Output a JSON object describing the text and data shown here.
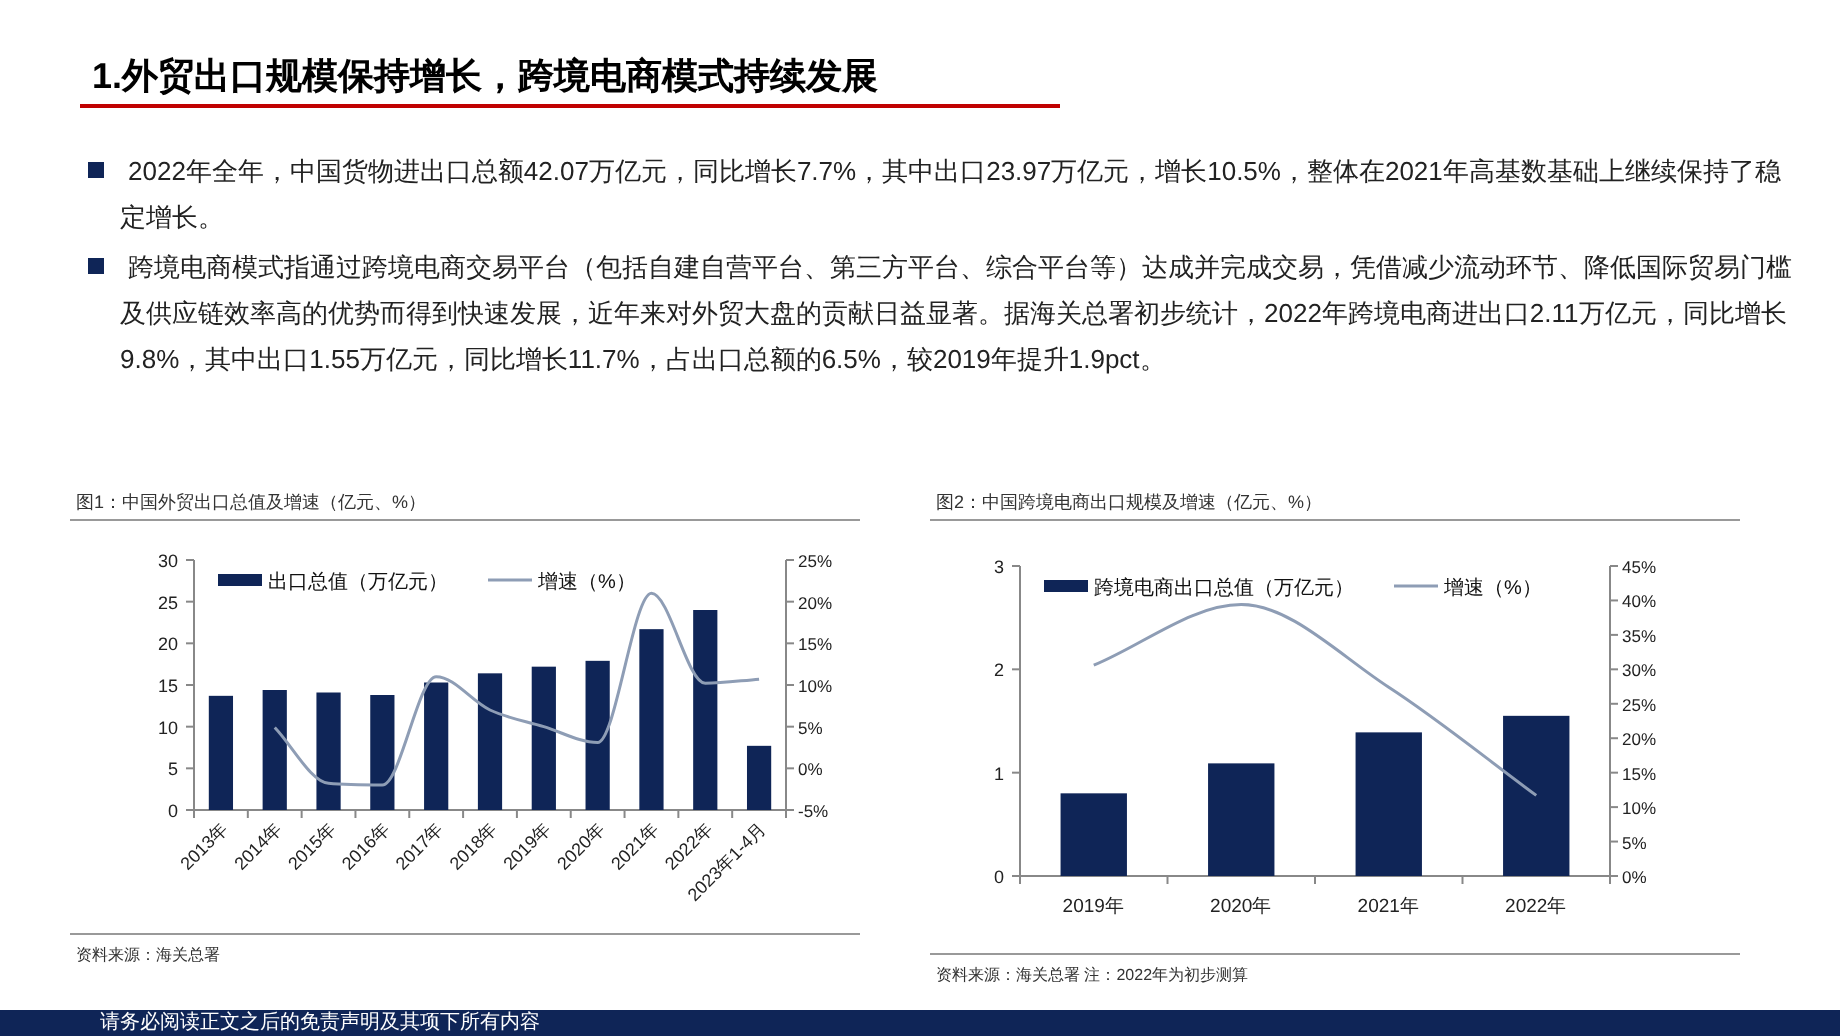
{
  "chart_data": [
    {
      "type": "other",
      "title": "1.外贸出口规模保持增长，跨境电商模式持续发展",
      "annotations": [
        "2022年全年，中国货物进出口总额42.07万亿元，同比增长7.7%，其中出口23.97万亿元，增长10.5%，整体在2021年高基数基础上继续保持了稳定增长。",
        "跨境电商模式指通过跨境电商交易平台（包括自建自营平台、第三方平台、综合平台等）达成并完成交易，凭借减少流动环节、降低国际贸易门槛及供应链效率高的优势而得到快速发展，近年来对外贸大盘的贡献日益显著。据海关总署初步统计，2022年跨境电商进出口2.11万亿元，同比增长9.8%，其中出口1.55万亿元，同比增长11.7%，占出口总额的6.5%，较2019年提升1.9pct。",
        "请务必阅读正文之后的免责声明及其项下所有内容"
      ]
    },
    {
      "type": "bar",
      "title": "图1：中国外贸出口总值及增速（亿元、%）",
      "categories": [
        "2013年",
        "2014年",
        "2015年",
        "2016年",
        "2017年",
        "2018年",
        "2019年",
        "2020年",
        "2021年",
        "2022年",
        "2023年1-4月"
      ],
      "series": [
        {
          "name": "出口总值（万亿元）",
          "type": "bar",
          "color": "#0f2557",
          "values": [
            13.7,
            14.4,
            14.1,
            13.8,
            15.3,
            16.4,
            17.2,
            17.9,
            21.7,
            24.0,
            7.7
          ]
        },
        {
          "name": "增速（%）",
          "type": "line",
          "axis": "y2",
          "color": "#8e9db5",
          "values": [
            null,
            4.9,
            -1.8,
            -2.0,
            11.0,
            7.0,
            5.0,
            3.1,
            21.0,
            10.2,
            10.7
          ]
        }
      ],
      "ylim": [
        0,
        30
      ],
      "yticks": [
        0,
        5,
        10,
        15,
        20,
        25,
        30
      ],
      "y2lim": [
        -5,
        25
      ],
      "y2ticks": [
        {
          "value": -5,
          "label": "-5%"
        },
        {
          "value": 0,
          "label": "0%"
        },
        {
          "value": 5,
          "label": "5%"
        },
        {
          "value": 10,
          "label": "10%"
        },
        {
          "value": 15,
          "label": "15%"
        },
        {
          "value": 20,
          "label": "20%"
        },
        {
          "value": 25,
          "label": "25%"
        }
      ],
      "legend": "top left",
      "annotations": [
        "资料来源：海关总署"
      ]
    },
    {
      "type": "bar",
      "title": "图2：中国跨境电商出口规模及增速（亿元、%）",
      "categories": [
        "2019年",
        "2020年",
        "2021年",
        "2022年"
      ],
      "series": [
        {
          "name": "跨境电商出口总值（万亿元）",
          "type": "bar",
          "color": "#0f2557",
          "values": [
            0.8,
            1.09,
            1.39,
            1.55
          ]
        },
        {
          "name": "增速（%）",
          "type": "line",
          "axis": "y2",
          "color": "#8e9db5",
          "values": [
            30.6,
            39.4,
            27.4,
            11.7
          ]
        }
      ],
      "ylim": [
        0,
        3
      ],
      "yticks": [
        0,
        1,
        2,
        3
      ],
      "y2lim": [
        0,
        45
      ],
      "y2ticks": [
        {
          "value": 0,
          "label": "0%"
        },
        {
          "value": 5,
          "label": "5%"
        },
        {
          "value": 10,
          "label": "10%"
        },
        {
          "value": 15,
          "label": "15%"
        },
        {
          "value": 20,
          "label": "20%"
        },
        {
          "value": 25,
          "label": "25%"
        },
        {
          "value": 30,
          "label": "30%"
        },
        {
          "value": 35,
          "label": "35%"
        },
        {
          "value": 40,
          "label": "40%"
        },
        {
          "value": 45,
          "label": "45%"
        }
      ],
      "legend": "top left",
      "annotations": [
        "资料来源：海关总署 注：2022年为初步测算"
      ]
    }
  ]
}
